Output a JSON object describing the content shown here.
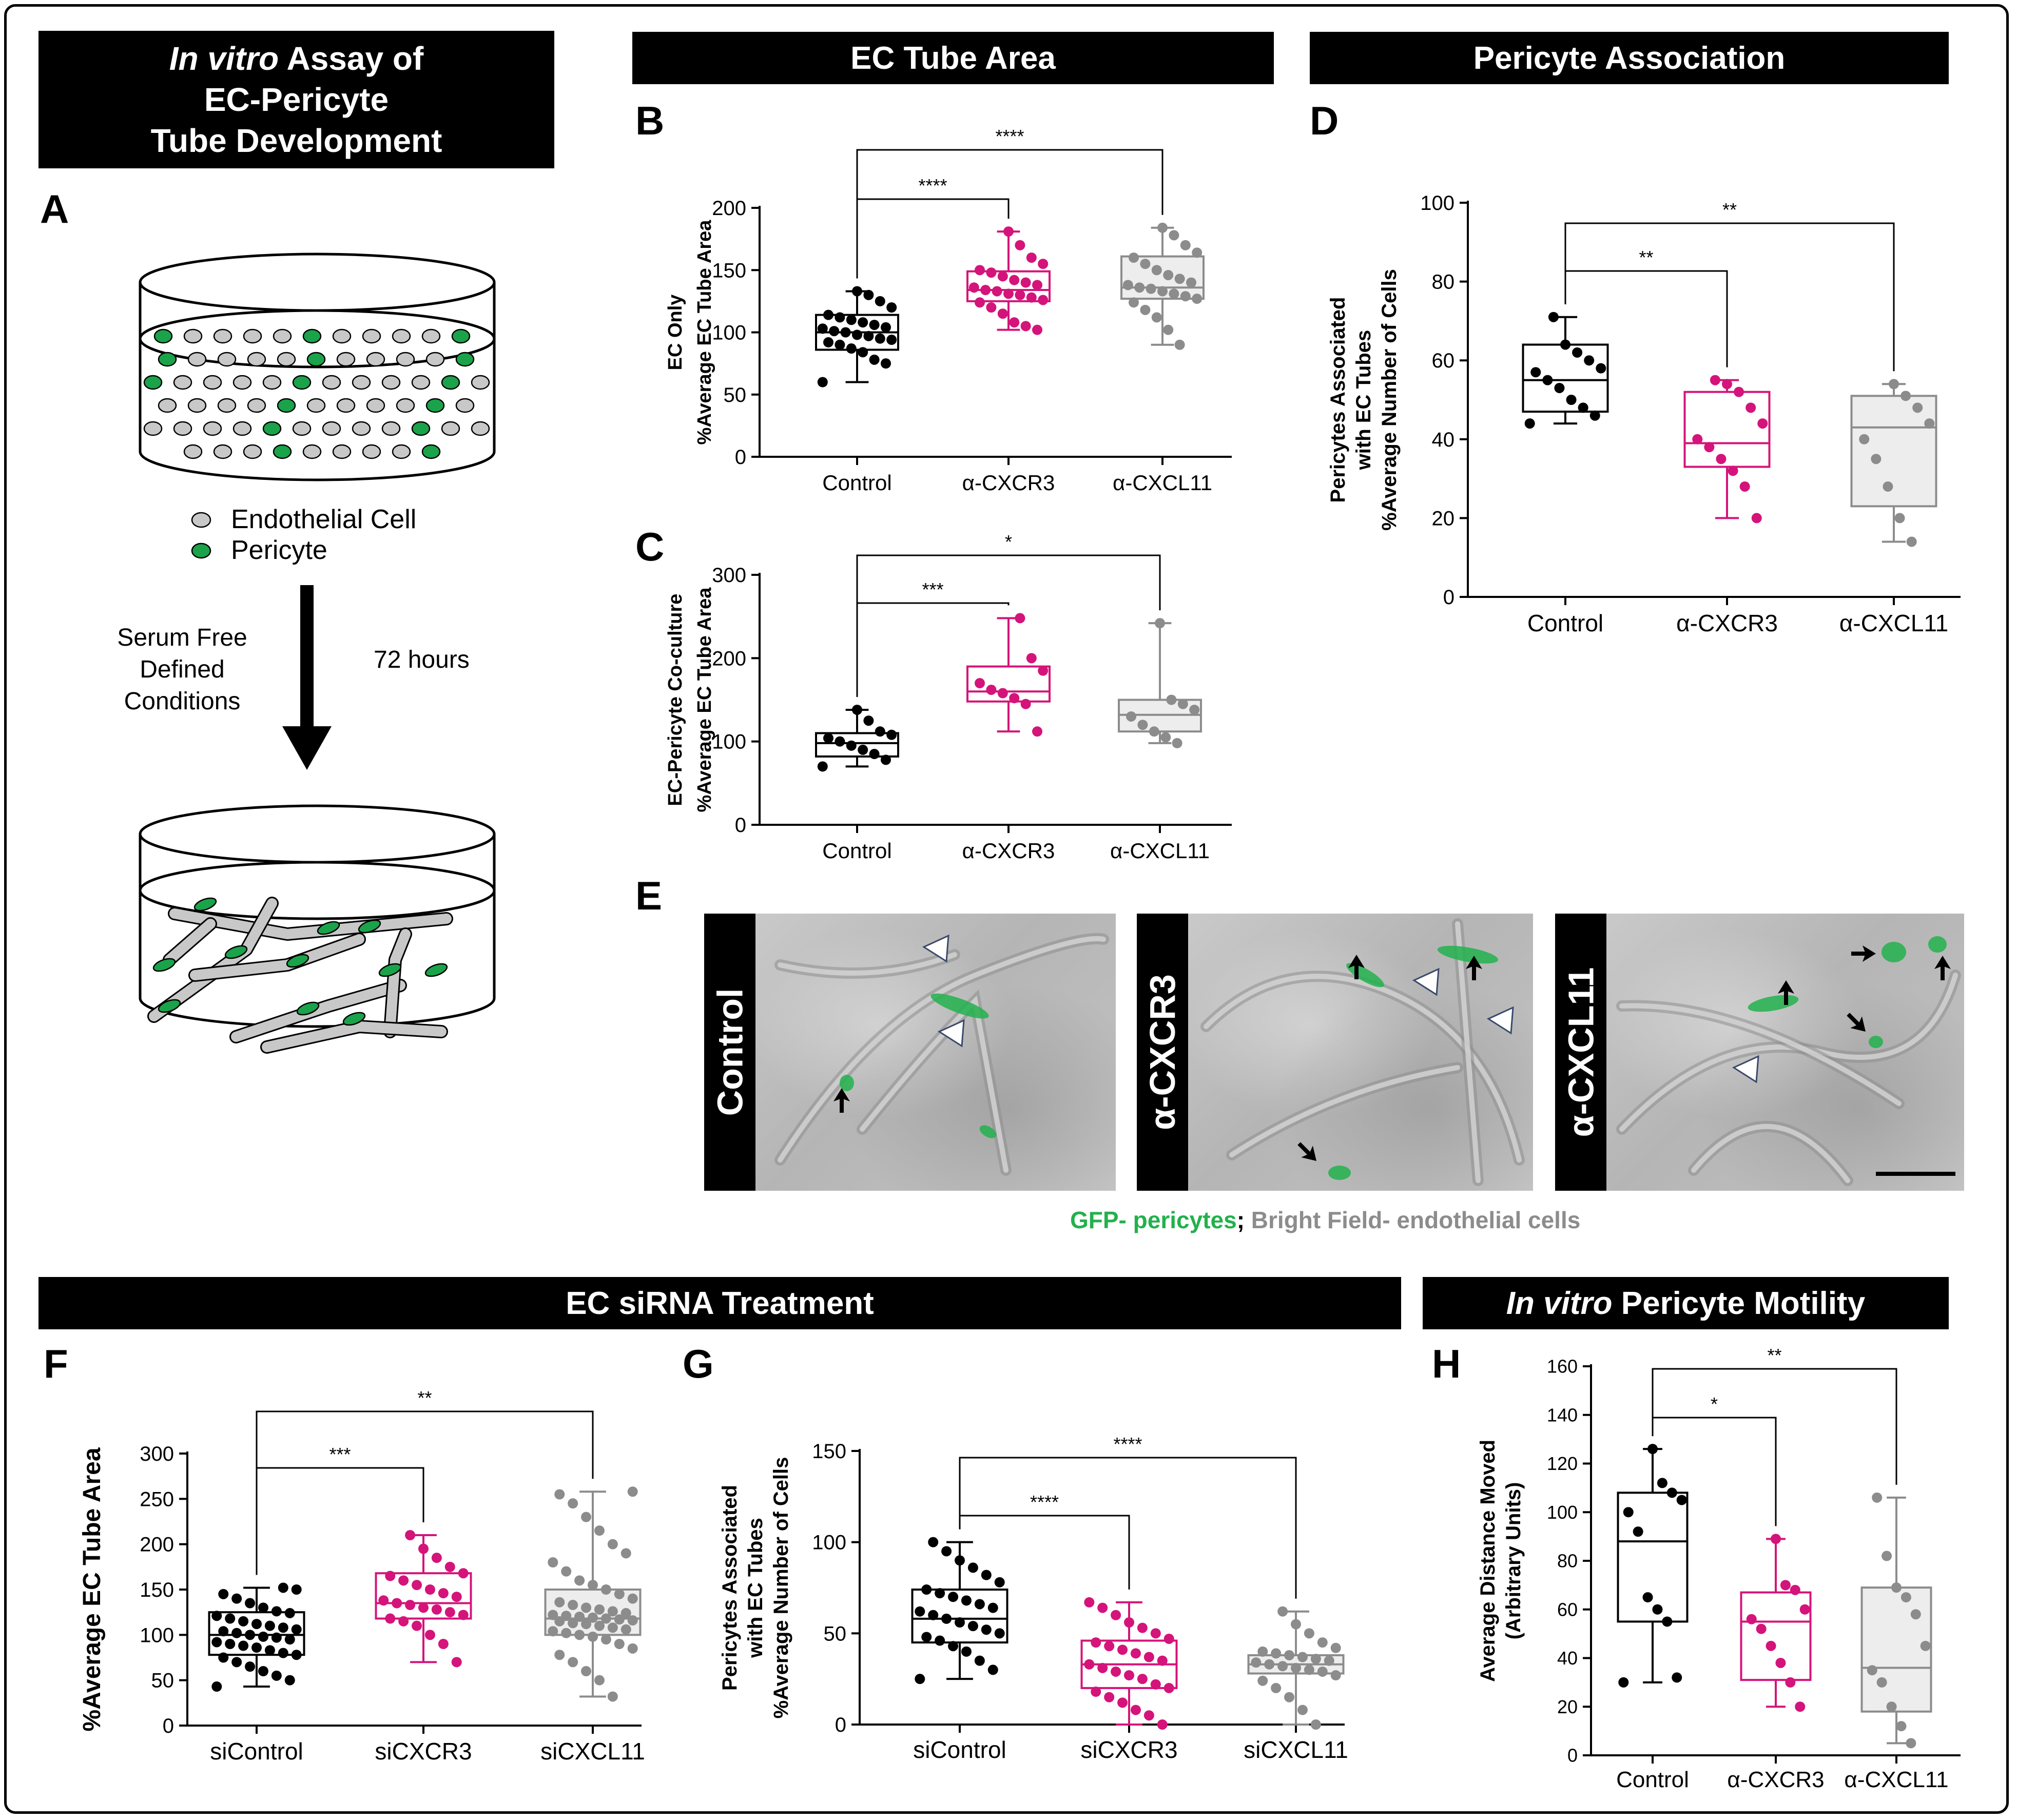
{
  "headers": {
    "assay_line1_italic": "In vitro",
    "assay_line1_rest": " Assay of",
    "assay_line2": "EC-Pericyte",
    "assay_line3": "Tube Development",
    "ec_tube_area": "EC Tube Area",
    "pericyte_association": "Pericyte Association",
    "ec_sirna": "EC siRNA Treatment",
    "motility_italic": "In vitro",
    "motility_rest": " Pericyte Motility"
  },
  "panel_letters": {
    "A": "A",
    "B": "B",
    "C": "C",
    "D": "D",
    "E": "E",
    "F": "F",
    "G": "G",
    "H": "H"
  },
  "schematic": {
    "legend_endothelial": "Endothelial Cell",
    "legend_pericyte": "Pericyte",
    "condition_text": [
      "Serum Free",
      "Defined",
      "Conditions"
    ],
    "duration": "72 hours",
    "colors": {
      "endothelial": "#c8c8c8",
      "pericyte": "#1aa34a"
    }
  },
  "micrographs": {
    "labels": [
      "Control",
      "α-CXCR3",
      "α-CXCL11"
    ],
    "caption_green": "GFP- pericytes",
    "caption_sep": "; ",
    "caption_gray": "Bright Field- endothelial cells",
    "colors": {
      "green": "#22b14c",
      "gray": "#8c8c8c"
    }
  },
  "colors": {
    "control": "#000000",
    "cxcr3": "#d4147a",
    "cxcl11": "#8c8c8c",
    "cxcl11_fill": "#ededed"
  },
  "chart_data": [
    {
      "id": "B",
      "type": "box",
      "ylabel": [
        "EC Only",
        "%Average EC Tube Area"
      ],
      "categories": [
        "Control",
        "α-CXCR3",
        "α-CXCL11"
      ],
      "ylim": [
        0,
        200
      ],
      "yticks": [
        0,
        50,
        100,
        150,
        200
      ],
      "boxes": [
        {
          "min": 60,
          "q1": 86,
          "median": 100,
          "q3": 114,
          "max": 133
        },
        {
          "min": 102,
          "q1": 125,
          "median": 134,
          "q3": 149,
          "max": 181
        },
        {
          "min": 90,
          "q1": 127,
          "median": 136,
          "q3": 161,
          "max": 184
        }
      ],
      "points": [
        [
          60,
          75,
          78,
          84,
          87,
          90,
          92,
          94,
          95,
          97,
          98,
          100,
          101,
          103,
          104,
          106,
          108,
          110,
          112,
          114,
          120,
          125,
          130,
          133
        ],
        [
          102,
          105,
          108,
          115,
          120,
          124,
          126,
          128,
          130,
          131,
          133,
          134,
          136,
          138,
          140,
          142,
          145,
          148,
          150,
          155,
          160,
          170,
          181
        ],
        [
          90,
          102,
          112,
          118,
          124,
          127,
          129,
          131,
          133,
          135,
          136,
          138,
          140,
          143,
          146,
          150,
          155,
          160,
          164,
          170,
          178,
          184
        ]
      ],
      "significance": [
        {
          "from": 0,
          "to": 1,
          "label": "****"
        },
        {
          "from": 0,
          "to": 2,
          "label": "****"
        }
      ]
    },
    {
      "id": "C",
      "type": "box",
      "ylabel": [
        "EC-Pericyte Co-culture",
        "%Average EC Tube Area"
      ],
      "categories": [
        "Control",
        "α-CXCR3",
        "α-CXCL11"
      ],
      "ylim": [
        0,
        300
      ],
      "yticks": [
        0,
        100,
        200,
        300
      ],
      "boxes": [
        {
          "min": 70,
          "q1": 82,
          "median": 98,
          "q3": 110,
          "max": 138
        },
        {
          "min": 112,
          "q1": 148,
          "median": 160,
          "q3": 190,
          "max": 248
        },
        {
          "min": 98,
          "q1": 112,
          "median": 132,
          "q3": 150,
          "max": 242
        }
      ],
      "points": [
        [
          70,
          78,
          85,
          90,
          95,
          100,
          104,
          108,
          112,
          125,
          138
        ],
        [
          112,
          145,
          152,
          158,
          162,
          170,
          185,
          200,
          248
        ],
        [
          98,
          105,
          112,
          120,
          130,
          138,
          145,
          150,
          242
        ]
      ],
      "significance": [
        {
          "from": 0,
          "to": 1,
          "label": "***"
        },
        {
          "from": 0,
          "to": 2,
          "label": "*"
        }
      ]
    },
    {
      "id": "D",
      "type": "box",
      "ylabel": [
        "Pericytes Associated",
        "with EC Tubes",
        "%Average Number of Cells"
      ],
      "categories": [
        "Control",
        "α-CXCR3",
        "α-CXCL11"
      ],
      "ylim": [
        0,
        100
      ],
      "yticks": [
        0,
        20,
        40,
        60,
        80,
        100
      ],
      "boxes": [
        {
          "min": 44,
          "q1": 47,
          "median": 55,
          "q3": 64,
          "max": 71
        },
        {
          "min": 20,
          "q1": 33,
          "median": 39,
          "q3": 52,
          "max": 55
        },
        {
          "min": 14,
          "q1": 23,
          "median": 43,
          "q3": 51,
          "max": 54
        }
      ],
      "points": [
        [
          44,
          46,
          48,
          50,
          53,
          55,
          57,
          58,
          60,
          62,
          64,
          71
        ],
        [
          20,
          28,
          32,
          35,
          38,
          40,
          44,
          48,
          52,
          54,
          55
        ],
        [
          14,
          20,
          28,
          35,
          40,
          44,
          48,
          51,
          54
        ]
      ],
      "significance": [
        {
          "from": 0,
          "to": 1,
          "label": "**"
        },
        {
          "from": 0,
          "to": 2,
          "label": "**"
        }
      ]
    },
    {
      "id": "F",
      "type": "box",
      "ylabel": [
        "%Average EC Tube Area"
      ],
      "categories": [
        "siControl",
        "siCXCR3",
        "siCXCL11"
      ],
      "ylim": [
        0,
        300
      ],
      "yticks": [
        0,
        50,
        100,
        150,
        200,
        250,
        300
      ],
      "boxes": [
        {
          "min": 43,
          "q1": 78,
          "median": 100,
          "q3": 125,
          "max": 152
        },
        {
          "min": 70,
          "q1": 118,
          "median": 135,
          "q3": 168,
          "max": 210
        },
        {
          "min": 32,
          "q1": 100,
          "median": 118,
          "q3": 150,
          "max": 258
        }
      ],
      "points": [
        [
          43,
          50,
          55,
          60,
          65,
          70,
          75,
          78,
          80,
          83,
          86,
          88,
          90,
          92,
          95,
          97,
          98,
          100,
          102,
          104,
          106,
          108,
          110,
          112,
          115,
          118,
          121,
          124,
          126,
          130,
          135,
          140,
          145,
          150,
          152
        ],
        [
          70,
          90,
          100,
          110,
          115,
          118,
          122,
          125,
          128,
          130,
          133,
          135,
          138,
          142,
          146,
          150,
          155,
          160,
          165,
          168,
          175,
          185,
          195,
          210
        ],
        [
          32,
          50,
          60,
          70,
          78,
          85,
          90,
          95,
          98,
          100,
          102,
          104,
          106,
          108,
          110,
          112,
          113,
          115,
          116,
          117,
          118,
          119,
          120,
          121,
          122,
          124,
          126,
          128,
          130,
          133,
          136,
          140,
          145,
          150,
          155,
          160,
          170,
          180,
          190,
          200,
          215,
          230,
          245,
          255,
          258
        ]
      ],
      "significance": [
        {
          "from": 0,
          "to": 1,
          "label": "***"
        },
        {
          "from": 0,
          "to": 2,
          "label": "**"
        }
      ]
    },
    {
      "id": "G",
      "type": "box",
      "ylabel": [
        "Pericytes Associated",
        "with EC Tubes",
        "%Average Number of Cells"
      ],
      "categories": [
        "siControl",
        "siCXCR3",
        "siCXCL11"
      ],
      "ylim": [
        0,
        150
      ],
      "yticks": [
        0,
        50,
        100,
        150
      ],
      "boxes": [
        {
          "min": 25,
          "q1": 45,
          "median": 58,
          "q3": 74,
          "max": 100
        },
        {
          "min": 0,
          "q1": 20,
          "median": 33,
          "q3": 46,
          "max": 67
        },
        {
          "min": 0,
          "q1": 28,
          "median": 33,
          "q3": 38,
          "max": 62
        }
      ],
      "points": [
        [
          25,
          30,
          35,
          40,
          43,
          46,
          48,
          50,
          52,
          54,
          56,
          58,
          60,
          62,
          64,
          66,
          68,
          70,
          72,
          74,
          78,
          82,
          86,
          90,
          95,
          100
        ],
        [
          0,
          5,
          8,
          12,
          15,
          18,
          20,
          22,
          25,
          27,
          29,
          31,
          33,
          35,
          37,
          39,
          41,
          43,
          45,
          47,
          50,
          53,
          56,
          60,
          64,
          67
        ],
        [
          0,
          8,
          15,
          20,
          24,
          27,
          29,
          30,
          31,
          32,
          33,
          34,
          35,
          36,
          37,
          38,
          39,
          40,
          42,
          45,
          50,
          55,
          62
        ]
      ],
      "significance": [
        {
          "from": 0,
          "to": 1,
          "label": "****"
        },
        {
          "from": 0,
          "to": 2,
          "label": "****"
        }
      ]
    },
    {
      "id": "H",
      "type": "box",
      "ylabel": [
        "Average Distance Moved",
        "(Arbitrary Units)"
      ],
      "categories": [
        "Control",
        "α-CXCR3",
        "α-CXCL11"
      ],
      "ylim": [
        0,
        160
      ],
      "yticks": [
        0,
        20,
        40,
        60,
        80,
        100,
        120,
        140,
        160
      ],
      "boxes": [
        {
          "min": 30,
          "q1": 55,
          "median": 88,
          "q3": 108,
          "max": 126
        },
        {
          "min": 20,
          "q1": 31,
          "median": 55,
          "q3": 67,
          "max": 89
        },
        {
          "min": 5,
          "q1": 18,
          "median": 36,
          "q3": 69,
          "max": 106
        }
      ],
      "points": [
        [
          30,
          32,
          55,
          60,
          65,
          92,
          100,
          105,
          108,
          112,
          126
        ],
        [
          20,
          30,
          38,
          45,
          52,
          56,
          60,
          68,
          70,
          89
        ],
        [
          5,
          12,
          20,
          30,
          35,
          45,
          58,
          65,
          69,
          82,
          106
        ]
      ],
      "significance": [
        {
          "from": 0,
          "to": 1,
          "label": "*"
        },
        {
          "from": 0,
          "to": 2,
          "label": "**"
        }
      ]
    }
  ]
}
